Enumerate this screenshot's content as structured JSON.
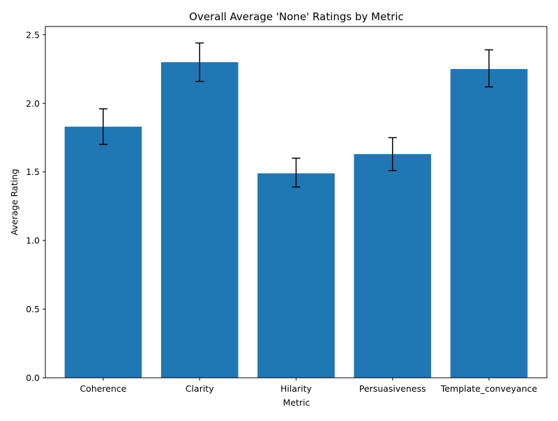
{
  "chart_data": {
    "type": "bar",
    "title": "Overall Average 'None' Ratings by Metric",
    "xlabel": "Metric",
    "ylabel": "Average Rating",
    "categories": [
      "Coherence",
      "Clarity",
      "Hilarity",
      "Persuasiveness",
      "Template_conveyance"
    ],
    "values": [
      1.83,
      2.3,
      1.49,
      1.63,
      2.25
    ],
    "error_low": [
      1.7,
      2.16,
      1.39,
      1.51,
      2.12
    ],
    "error_high": [
      1.96,
      2.44,
      1.6,
      1.75,
      2.39
    ],
    "ylim": [
      0,
      2.56
    ],
    "yticks": [
      0.0,
      0.5,
      1.0,
      1.5,
      2.0,
      2.5
    ],
    "ytick_labels": [
      "0.0",
      "0.5",
      "1.0",
      "1.5",
      "2.0",
      "2.5"
    ],
    "grid": false,
    "bar_color": "#1f77b4",
    "error_color": "#000000"
  }
}
